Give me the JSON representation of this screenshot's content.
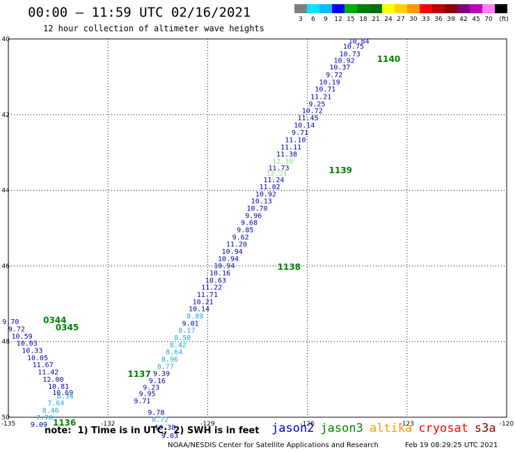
{
  "header": {
    "title": "00:00 – 11:59 UTC 02/16/2021",
    "subtitle": "12 hour collection of altimeter wave heights"
  },
  "colorbar": {
    "colors": [
      "#808080",
      "#00e5ff",
      "#00bfff",
      "#0000ff",
      "#00b000",
      "#008000",
      "#007000",
      "#ffff00",
      "#ffd000",
      "#ff9900",
      "#ff0000",
      "#c00000",
      "#900000",
      "#800080",
      "#c000c0",
      "#ff80ff",
      "#000000"
    ],
    "labels": [
      "3",
      "6",
      "9",
      "12",
      "15",
      "18",
      "21",
      "24",
      "27",
      "30",
      "33",
      "36",
      "39",
      "42",
      "45",
      "70",
      "(ft)"
    ]
  },
  "footer": {
    "note": "note:  1) Time is in UTC;  2) SWH is in feet",
    "credit": "NOAA/NESDIS Center for Satellite Applications and Research",
    "timestamp": "Feb 19 08:29:25 UTC 2021"
  },
  "legend": [
    {
      "name": "jason2",
      "color": "#0000cc"
    },
    {
      "name": "jason3",
      "color": "#008000"
    },
    {
      "name": "altika",
      "color": "#ff9900"
    },
    {
      "name": "cryosat",
      "color": "#ff0000"
    },
    {
      "name": "s3a",
      "color": "#800000"
    }
  ],
  "chart_data": {
    "type": "scatter",
    "x_ticks": [
      "-135",
      "-132",
      "-129",
      "-126",
      "-123",
      "-120"
    ],
    "y_ticks": [
      "40",
      "42",
      "44",
      "46",
      "48",
      "50"
    ],
    "xlim": [
      -135,
      -120
    ],
    "ylim": [
      50,
      40
    ],
    "colors": {
      "dark": "#0000aa",
      "cyan": "#1aa6dd",
      "lgreen": "#7ee57e"
    },
    "points": [
      {
        "lon": -124.45,
        "lat": 40.12,
        "v": "10.84",
        "c": "dark"
      },
      {
        "lon": -124.61,
        "lat": 40.26,
        "v": "10.75",
        "c": "dark"
      },
      {
        "lon": -124.72,
        "lat": 40.46,
        "v": "10.73",
        "c": "dark"
      },
      {
        "lon": -124.89,
        "lat": 40.63,
        "v": "10.92",
        "c": "dark"
      },
      {
        "lon": -125.02,
        "lat": 40.81,
        "v": "10.37",
        "c": "dark"
      },
      {
        "lon": -125.19,
        "lat": 41.01,
        "v": "9.72",
        "c": "dark"
      },
      {
        "lon": -125.33,
        "lat": 41.2,
        "v": "10.19",
        "c": "dark"
      },
      {
        "lon": -125.46,
        "lat": 41.39,
        "v": "10.71",
        "c": "dark"
      },
      {
        "lon": -125.59,
        "lat": 41.59,
        "v": "11.21",
        "c": "dark"
      },
      {
        "lon": -125.71,
        "lat": 41.78,
        "v": "9.25",
        "c": "dark"
      },
      {
        "lon": -125.85,
        "lat": 41.96,
        "v": "10.72",
        "c": "dark"
      },
      {
        "lon": -125.98,
        "lat": 42.15,
        "v": "11.45",
        "c": "dark"
      },
      {
        "lon": -126.09,
        "lat": 42.34,
        "v": "10.14",
        "c": "dark"
      },
      {
        "lon": -126.22,
        "lat": 42.54,
        "v": "9.71",
        "c": "dark"
      },
      {
        "lon": -126.36,
        "lat": 42.73,
        "v": "11.10",
        "c": "dark"
      },
      {
        "lon": -126.49,
        "lat": 42.92,
        "v": "11.11",
        "c": "dark"
      },
      {
        "lon": -126.62,
        "lat": 43.11,
        "v": "11.38",
        "c": "dark"
      },
      {
        "lon": -126.74,
        "lat": 43.3,
        "v": "12.38",
        "c": "lgreen"
      },
      {
        "lon": -126.86,
        "lat": 43.47,
        "v": "11.73",
        "c": "dark"
      },
      {
        "lon": -126.92,
        "lat": 43.62,
        "v": "12.21",
        "c": "lgreen"
      },
      {
        "lon": -127.01,
        "lat": 43.79,
        "v": "11.24",
        "c": "dark"
      },
      {
        "lon": -127.13,
        "lat": 43.97,
        "v": "11.02",
        "c": "dark"
      },
      {
        "lon": -127.25,
        "lat": 44.16,
        "v": "10.92",
        "c": "dark"
      },
      {
        "lon": -127.38,
        "lat": 44.35,
        "v": "10.13",
        "c": "dark"
      },
      {
        "lon": -127.51,
        "lat": 44.54,
        "v": "10.70",
        "c": "dark"
      },
      {
        "lon": -127.62,
        "lat": 44.73,
        "v": "9.96",
        "c": "dark"
      },
      {
        "lon": -127.75,
        "lat": 44.92,
        "v": "9.68",
        "c": "dark"
      },
      {
        "lon": -127.87,
        "lat": 45.11,
        "v": "9.85",
        "c": "dark"
      },
      {
        "lon": -128.01,
        "lat": 45.3,
        "v": "9.62",
        "c": "dark"
      },
      {
        "lon": -128.13,
        "lat": 45.49,
        "v": "11.20",
        "c": "dark"
      },
      {
        "lon": -128.26,
        "lat": 45.68,
        "v": "10.94",
        "c": "dark"
      },
      {
        "lon": -128.38,
        "lat": 45.87,
        "v": "10.94",
        "c": "dark"
      },
      {
        "lon": -128.5,
        "lat": 46.06,
        "v": "10.94",
        "c": "dark"
      },
      {
        "lon": -128.63,
        "lat": 46.25,
        "v": "10.16",
        "c": "dark"
      },
      {
        "lon": -128.76,
        "lat": 46.44,
        "v": "10.63",
        "c": "dark"
      },
      {
        "lon": -128.88,
        "lat": 46.63,
        "v": "11.22",
        "c": "dark"
      },
      {
        "lon": -129.01,
        "lat": 46.82,
        "v": "11.71",
        "c": "dark"
      },
      {
        "lon": -129.14,
        "lat": 47.01,
        "v": "10.21",
        "c": "dark"
      },
      {
        "lon": -129.26,
        "lat": 47.2,
        "v": "10.14",
        "c": "dark"
      },
      {
        "lon": -129.38,
        "lat": 47.39,
        "v": "8.89",
        "c": "cyan"
      },
      {
        "lon": -129.52,
        "lat": 47.58,
        "v": "9.01",
        "c": "dark"
      },
      {
        "lon": -129.63,
        "lat": 47.77,
        "v": "8.17",
        "c": "cyan"
      },
      {
        "lon": -129.76,
        "lat": 47.96,
        "v": "8.50",
        "c": "cyan"
      },
      {
        "lon": -129.89,
        "lat": 48.15,
        "v": "8.42",
        "c": "cyan"
      },
      {
        "lon": -130.01,
        "lat": 48.34,
        "v": "8.64",
        "c": "cyan"
      },
      {
        "lon": -130.14,
        "lat": 48.53,
        "v": "8.96",
        "c": "cyan"
      },
      {
        "lon": -130.27,
        "lat": 48.72,
        "v": "8.77",
        "c": "cyan"
      },
      {
        "lon": -130.39,
        "lat": 48.91,
        "v": "9.39",
        "c": "dark"
      },
      {
        "lon": -130.52,
        "lat": 49.1,
        "v": "9.16",
        "c": "dark"
      },
      {
        "lon": -130.7,
        "lat": 49.27,
        "v": "9.23",
        "c": "dark"
      },
      {
        "lon": -130.82,
        "lat": 49.44,
        "v": "9.95",
        "c": "dark"
      },
      {
        "lon": -130.97,
        "lat": 49.63,
        "v": "9.71",
        "c": "dark"
      },
      {
        "lon": -130.55,
        "lat": 49.94,
        "v": "9.78",
        "c": "dark"
      },
      {
        "lon": -130.43,
        "lat": 50.12,
        "v": "8.72",
        "c": "cyan"
      },
      {
        "lon": -130.28,
        "lat": 50.33,
        "v": "10.38",
        "c": "dark"
      },
      {
        "lon": -130.14,
        "lat": 50.55,
        "v": "9.03",
        "c": "dark"
      },
      {
        "lon": -134.93,
        "lat": 47.54,
        "v": "9.70",
        "c": "dark"
      },
      {
        "lon": -134.75,
        "lat": 47.73,
        "v": "9.72",
        "c": "dark"
      },
      {
        "lon": -134.59,
        "lat": 47.92,
        "v": "10.59",
        "c": "dark"
      },
      {
        "lon": -134.44,
        "lat": 48.11,
        "v": "10.03",
        "c": "dark"
      },
      {
        "lon": -134.28,
        "lat": 48.3,
        "v": "10.33",
        "c": "dark"
      },
      {
        "lon": -134.12,
        "lat": 48.49,
        "v": "10.05",
        "c": "dark"
      },
      {
        "lon": -133.96,
        "lat": 48.68,
        "v": "11.67",
        "c": "dark"
      },
      {
        "lon": -133.8,
        "lat": 48.87,
        "v": "11.42",
        "c": "dark"
      },
      {
        "lon": -133.65,
        "lat": 49.06,
        "v": "12.00",
        "c": "dark"
      },
      {
        "lon": -133.49,
        "lat": 49.25,
        "v": "10.81",
        "c": "dark"
      },
      {
        "lon": -133.36,
        "lat": 49.41,
        "v": "10.69",
        "c": "dark"
      },
      {
        "lon": -133.29,
        "lat": 49.5,
        "v": "8.34",
        "c": "cyan"
      },
      {
        "lon": -133.57,
        "lat": 49.69,
        "v": "7.64",
        "c": "cyan"
      },
      {
        "lon": -133.73,
        "lat": 49.88,
        "v": "8.46",
        "c": "cyan"
      },
      {
        "lon": -133.91,
        "lat": 50.07,
        "v": "7.70",
        "c": "cyan"
      },
      {
        "lon": -134.08,
        "lat": 50.26,
        "v": "9.09",
        "c": "dark"
      }
    ],
    "times": [
      {
        "lon": -123.55,
        "lat": 40.61,
        "t": "1140"
      },
      {
        "lon": -125.0,
        "lat": 43.55,
        "t": "1139"
      },
      {
        "lon": -126.55,
        "lat": 46.1,
        "t": "1138"
      },
      {
        "lon": -131.06,
        "lat": 48.93,
        "t": "1137"
      },
      {
        "lon": -133.31,
        "lat": 50.22,
        "t": "1136"
      },
      {
        "lon": -133.6,
        "lat": 47.51,
        "t": "0344"
      },
      {
        "lon": -133.23,
        "lat": 47.7,
        "t": "0345"
      }
    ]
  }
}
